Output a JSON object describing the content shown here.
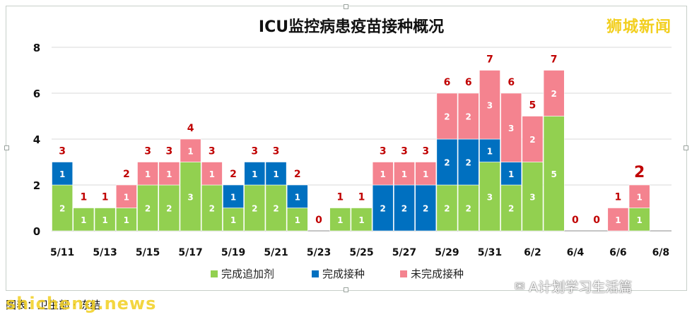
{
  "brand": "狮城新闻",
  "wechat_label": "A计划学习生活篇",
  "source_line": "图表：卫生部 · 冻结",
  "watermark": "shicheng.news",
  "colors": {
    "booster": "#92d050",
    "completed": "#0070c0",
    "incomplete": "#f4838f",
    "total_label": "#c00000"
  },
  "chart_data": {
    "type": "bar",
    "stacked": true,
    "title": "ICU监控病患疫苗接种概况",
    "categories": [
      "5/11",
      "5/12",
      "5/13",
      "5/14",
      "5/15",
      "5/16",
      "5/17",
      "5/18",
      "5/19",
      "5/20",
      "5/21",
      "5/22",
      "5/23",
      "5/24",
      "5/25",
      "5/26",
      "5/27",
      "5/28",
      "5/29",
      "5/30",
      "5/31",
      "6/1",
      "6/2",
      "6/3",
      "6/4",
      "6/5",
      "6/6",
      "6/7",
      "6/8"
    ],
    "tick_labels": [
      "5/11",
      "5/13",
      "5/15",
      "5/17",
      "5/19",
      "5/21",
      "5/23",
      "5/25",
      "5/27",
      "5/29",
      "5/31",
      "6/2",
      "6/4",
      "6/6",
      "6/8"
    ],
    "series": [
      {
        "name": "完成追加剂",
        "color": "#92d050",
        "values": [
          2,
          1,
          1,
          1,
          2,
          2,
          3,
          2,
          1,
          2,
          2,
          1,
          0,
          1,
          1,
          0,
          0,
          0,
          2,
          2,
          3,
          2,
          3,
          5,
          0,
          0,
          0,
          1,
          0
        ]
      },
      {
        "name": "完成接种",
        "color": "#0070c0",
        "values": [
          1,
          0,
          0,
          0,
          0,
          0,
          0,
          0,
          1,
          1,
          1,
          1,
          0,
          0,
          0,
          2,
          2,
          2,
          2,
          2,
          1,
          1,
          0,
          0,
          0,
          0,
          0,
          0,
          0
        ]
      },
      {
        "name": "未完成接种",
        "color": "#f4838f",
        "values": [
          0,
          0,
          0,
          1,
          1,
          1,
          1,
          1,
          0,
          0,
          0,
          0,
          0,
          0,
          0,
          1,
          1,
          1,
          2,
          2,
          3,
          3,
          2,
          2,
          0,
          0,
          1,
          1,
          0
        ]
      }
    ],
    "totals": [
      3,
      1,
      1,
      2,
      3,
      3,
      4,
      3,
      2,
      3,
      3,
      2,
      0,
      1,
      1,
      3,
      3,
      3,
      6,
      6,
      7,
      6,
      5,
      7,
      0,
      0,
      1,
      2,
      null
    ],
    "ylim": [
      0,
      8
    ],
    "yticks": [
      0,
      2,
      4,
      6,
      8
    ],
    "grid": true,
    "legend_position": "bottom"
  }
}
